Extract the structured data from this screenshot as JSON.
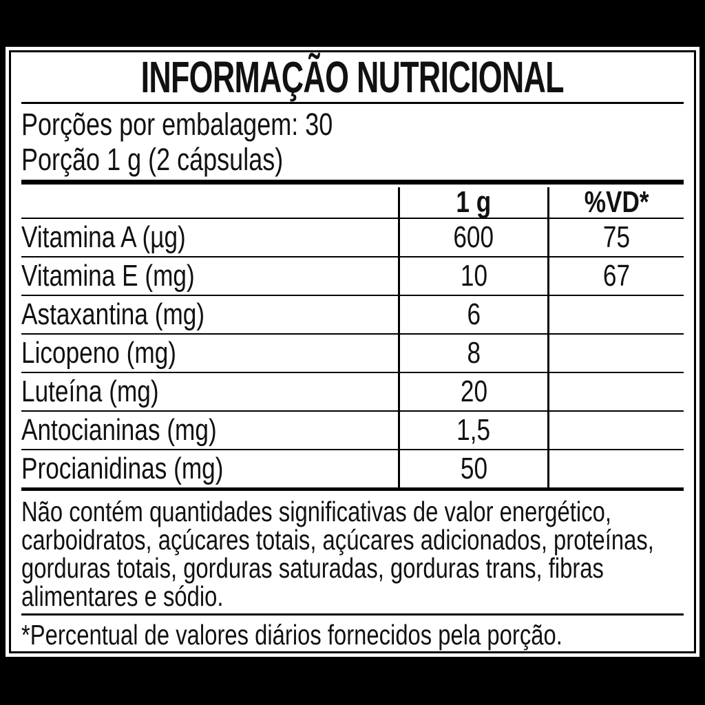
{
  "label": {
    "title": "INFORMAÇÃO NUTRICIONAL",
    "servings_per_package": "Porções por embalagem: 30",
    "serving_size": "Porção 1 g (2 cápsulas)",
    "table": {
      "columns": [
        "",
        "1 g",
        "%VD*"
      ],
      "rows": [
        {
          "name": "Vitamina A (µg)",
          "amount": "600",
          "dv": "75"
        },
        {
          "name": "Vitamina E (mg)",
          "amount": "10",
          "dv": "67"
        },
        {
          "name": "Astaxantina (mg)",
          "amount": "6",
          "dv": ""
        },
        {
          "name": "Licopeno (mg)",
          "amount": "8",
          "dv": ""
        },
        {
          "name": "Luteína (mg)",
          "amount": "20",
          "dv": ""
        },
        {
          "name": "Antocianinas (mg)",
          "amount": "1,5",
          "dv": ""
        },
        {
          "name": "Procianidinas (mg)",
          "amount": "50",
          "dv": ""
        }
      ]
    },
    "disclaimer_lines": [
      "Não contém quantidades significativas de valor energético,",
      "carboidratos, açúcares totais, açúcares adicionados, proteínas,",
      "gorduras totais, gorduras saturadas, gorduras trans, fibras",
      "alimentares e sódio."
    ],
    "footnote": "*Percentual de valores diários fornecidos pela porção."
  },
  "colors": {
    "page_background": "#000000",
    "card_background": "#ffffff",
    "text": "#111111",
    "lines": "#000000"
  }
}
